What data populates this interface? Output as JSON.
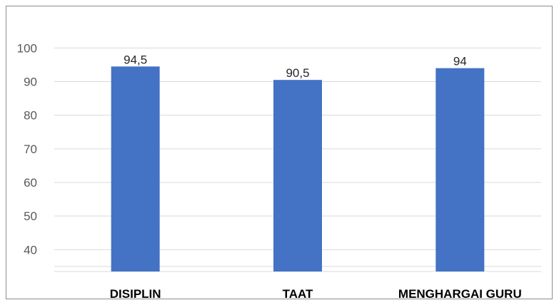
{
  "chart_data": {
    "type": "bar",
    "title": "",
    "xlabel": "",
    "ylabel": "",
    "categories": [
      "DISIPLIN",
      "TAAT",
      "MENGHARGAI GURU"
    ],
    "values": [
      94.5,
      90.5,
      94
    ],
    "data_labels": [
      "94,5",
      "90,5",
      "94"
    ],
    "y_ticks": [
      40,
      50,
      60,
      70,
      80,
      90,
      100
    ],
    "y_tick_labels": [
      "40",
      "50",
      "60",
      "70",
      "80",
      "90",
      "100"
    ],
    "ylim": [
      33.5,
      100.5
    ],
    "grid": true,
    "bar_color": "#4472c4",
    "legend": "none"
  }
}
